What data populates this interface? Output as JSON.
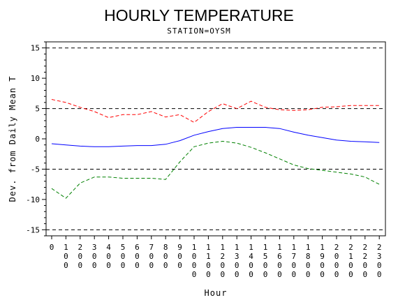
{
  "chart_data": {
    "type": "line",
    "title": "HOURLY TEMPERATURE",
    "subtitle": "STATION=OYSM",
    "xlabel": "Hour",
    "ylabel": "Dev. from Daily Mean T",
    "x": [
      0,
      100,
      200,
      300,
      400,
      500,
      600,
      700,
      800,
      900,
      1000,
      1100,
      1200,
      1300,
      1400,
      1500,
      1600,
      1700,
      1800,
      1900,
      2000,
      2100,
      2200,
      2300
    ],
    "x_tick_labels": [
      "0",
      "100",
      "200",
      "300",
      "400",
      "500",
      "600",
      "700",
      "800",
      "900",
      "1000",
      "1100",
      "1200",
      "1300",
      "1400",
      "1500",
      "1600",
      "1700",
      "1800",
      "1900",
      "2000",
      "2100",
      "2200",
      "2300"
    ],
    "ylim": [
      -16,
      16
    ],
    "y_ticks": [
      -15,
      -10,
      -5,
      0,
      5,
      10,
      15
    ],
    "reference_lines": [
      -15,
      -5,
      5,
      15
    ],
    "series": [
      {
        "color": "#ff0000",
        "style": "dashed",
        "values": [
          6.5,
          6.0,
          5.2,
          4.5,
          3.5,
          4.0,
          4.0,
          4.5,
          3.6,
          4.0,
          2.7,
          4.5,
          5.8,
          5.0,
          6.2,
          5.2,
          4.8,
          4.7,
          4.8,
          5.2,
          5.3,
          5.5,
          5.5,
          5.5
        ]
      },
      {
        "color": "#0000ff",
        "style": "solid",
        "values": [
          -0.8,
          -1.0,
          -1.2,
          -1.3,
          -1.3,
          -1.2,
          -1.1,
          -1.1,
          -0.9,
          -0.3,
          0.6,
          1.2,
          1.7,
          1.9,
          1.9,
          1.9,
          1.7,
          1.1,
          0.6,
          0.2,
          -0.2,
          -0.4,
          -0.5,
          -0.6
        ]
      },
      {
        "color": "#008000",
        "style": "dashed",
        "values": [
          -8.2,
          -9.8,
          -7.3,
          -6.3,
          -6.3,
          -6.5,
          -6.5,
          -6.5,
          -6.7,
          -3.8,
          -1.3,
          -0.7,
          -0.4,
          -0.7,
          -1.4,
          -2.3,
          -3.3,
          -4.3,
          -4.9,
          -5.2,
          -5.5,
          -5.8,
          -6.3,
          -7.5
        ]
      }
    ]
  }
}
